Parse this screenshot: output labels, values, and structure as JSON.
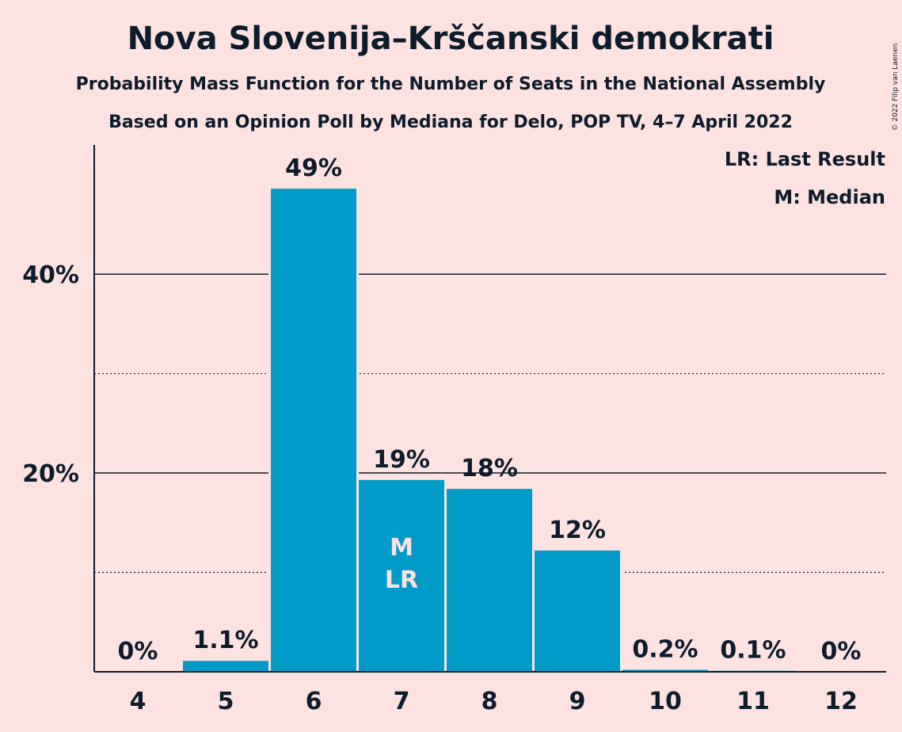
{
  "chart_data": {
    "type": "bar",
    "title": "Nova Slovenija–Krščanski demokrati",
    "subtitle1": "Probability Mass Function for the Number of Seats in the National Assembly",
    "subtitle2": "Based on an Opinion Poll by Mediana for Delo, POP TV, 4–7 April 2022",
    "copyright": "© 2022 Filip van Laenen",
    "categories": [
      "4",
      "5",
      "6",
      "7",
      "8",
      "9",
      "10",
      "11",
      "12"
    ],
    "values": [
      0,
      1.1,
      48.6,
      19.3,
      18.4,
      12.2,
      0.2,
      0.1,
      0
    ],
    "value_labels": [
      "0%",
      "1.1%",
      "49%",
      "19%",
      "18%",
      "12%",
      "0.2%",
      "0.1%",
      "0%"
    ],
    "ylim": [
      0,
      53
    ],
    "yticks": [
      {
        "value": 20,
        "label": "20%"
      },
      {
        "value": 40,
        "label": "40%"
      }
    ],
    "minor_gridlines": [
      10,
      30
    ],
    "median_category": "7",
    "last_result_category": "7",
    "median_marker": "M",
    "last_result_marker": "LR",
    "legend": [
      "LR: Last Result",
      "M: Median"
    ],
    "bar_color": "#009bc8",
    "background_color": "#fde2e2",
    "text_color": "#0d1b2a",
    "marker_color": "#fde2e2",
    "legend_position": "top-right",
    "grid": true
  }
}
